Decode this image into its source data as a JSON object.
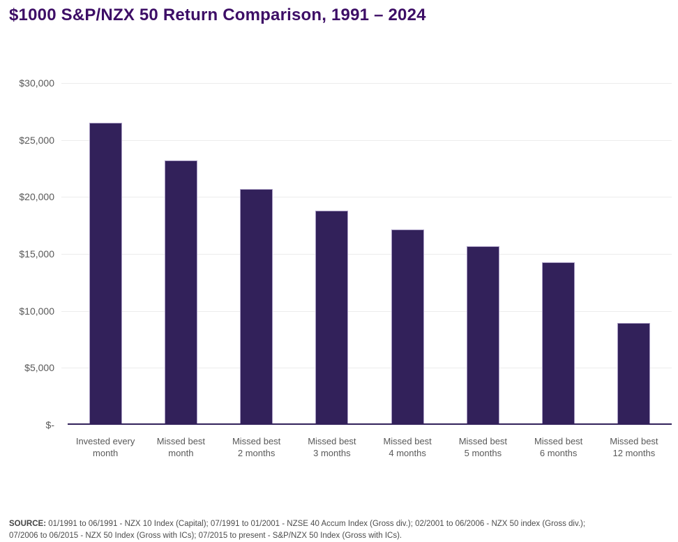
{
  "header": {
    "title": "$1000 S&P/NZX 50 Return Comparison, 1991 – 2024"
  },
  "chart_data": {
    "type": "bar",
    "title": "$1000 S&P/NZX 50 Return Comparison, 1991 – 2024",
    "categories": [
      "Invested every month",
      "Missed best month",
      "Missed best 2 months",
      "Missed best 3 months",
      "Missed best 4 months",
      "Missed best 5 months",
      "Missed best 6 months",
      "Missed best 12 months"
    ],
    "categories_display": [
      "Invested every\nmonth",
      "Missed best\nmonth",
      "Missed best\n2 months",
      "Missed best\n3 months",
      "Missed best\n4 months",
      "Missed best\n5 months",
      "Missed best\n6 months",
      "Missed best\n12 months"
    ],
    "values": [
      26400,
      23100,
      20600,
      18700,
      17000,
      15550,
      14150,
      8800
    ],
    "xlabel": "",
    "ylabel": "",
    "ylim": [
      0,
      30000
    ],
    "y_ticks": [
      {
        "value": 0,
        "label": "$-"
      },
      {
        "value": 5000,
        "label": "$5,000"
      },
      {
        "value": 10000,
        "label": "$10,000"
      },
      {
        "value": 15000,
        "label": "$15,000"
      },
      {
        "value": 20000,
        "label": "$20,000"
      },
      {
        "value": 25000,
        "label": "$25,000"
      },
      {
        "value": 30000,
        "label": "$30,000"
      }
    ],
    "grid": "horizontal",
    "legend": "none",
    "colors": {
      "bar": "#32215a",
      "bar_edge": "#a99dc4",
      "baseline": "#32215a",
      "gridline": "#ececec",
      "axis_text": "#595959",
      "title_text": "#3d0e66"
    }
  },
  "footer": {
    "source_label": "SOURCE:",
    "source_line1": "01/1991 to 06/1991 - NZX 10 Index (Capital); 07/1991 to 01/2001 - NZSE 40 Accum Index (Gross div.); 02/2001 to 06/2006 - NZX 50 index (Gross div.);",
    "source_line2": "07/2006 to 06/2015 - NZX 50 Index (Gross with ICs); 07/2015 to present - S&P/NZX 50 Index (Gross with ICs)."
  }
}
